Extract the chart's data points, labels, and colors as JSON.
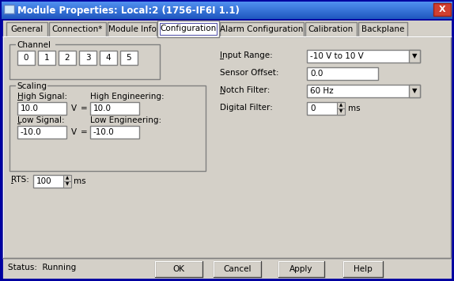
{
  "title": "Module Properties: Local:2 (1756-IF6I 1.1)",
  "title_bar_color_top": "#4a90e8",
  "title_bar_color_bot": "#1a5cc8",
  "title_text_color": "#ffffff",
  "bg_color": "#d4d0c8",
  "dialog_border": "#0000a0",
  "tabs": [
    "General",
    "Connection*",
    "Module Info",
    "Configuration",
    "Alarm Configuration",
    "Calibration",
    "Backplane"
  ],
  "active_tab": "Configuration",
  "channel_label": "Channel",
  "channel_buttons": [
    "0",
    "1",
    "2",
    "3",
    "4",
    "5"
  ],
  "scaling_label": "Scaling",
  "high_signal_label": "High Signal:",
  "high_signal_value": "10.0",
  "high_signal_unit": "V",
  "high_eng_label": "High Engineering:",
  "high_eng_value": "10.0",
  "low_signal_label": "Low Signal:",
  "low_signal_value": "-10.0",
  "low_signal_unit": "V",
  "low_eng_label": "Low Engineering:",
  "low_eng_value": "-10.0",
  "rts_label": "RTS:",
  "rts_value": "100",
  "rts_unit": "ms",
  "input_range_label": "Input Range:",
  "input_range_value": "-10 V to 10 V",
  "sensor_offset_label": "Sensor Offset:",
  "sensor_offset_value": "0.0",
  "notch_filter_label": "Notch Filter:",
  "notch_filter_value": "60 Hz",
  "digital_filter_label": "Digital Filter:",
  "digital_filter_value": "0",
  "digital_filter_unit": "ms",
  "status_label": "Status:  Running",
  "buttons": [
    "OK",
    "Cancel",
    "Apply",
    "Help"
  ],
  "field_bg": "#ffffff",
  "border_dark": "#808080",
  "border_light": "#ffffff",
  "close_btn_color": "#d04030",
  "tab_widths": [
    52,
    72,
    62,
    76,
    106,
    65,
    62
  ],
  "font_size": 7.5
}
